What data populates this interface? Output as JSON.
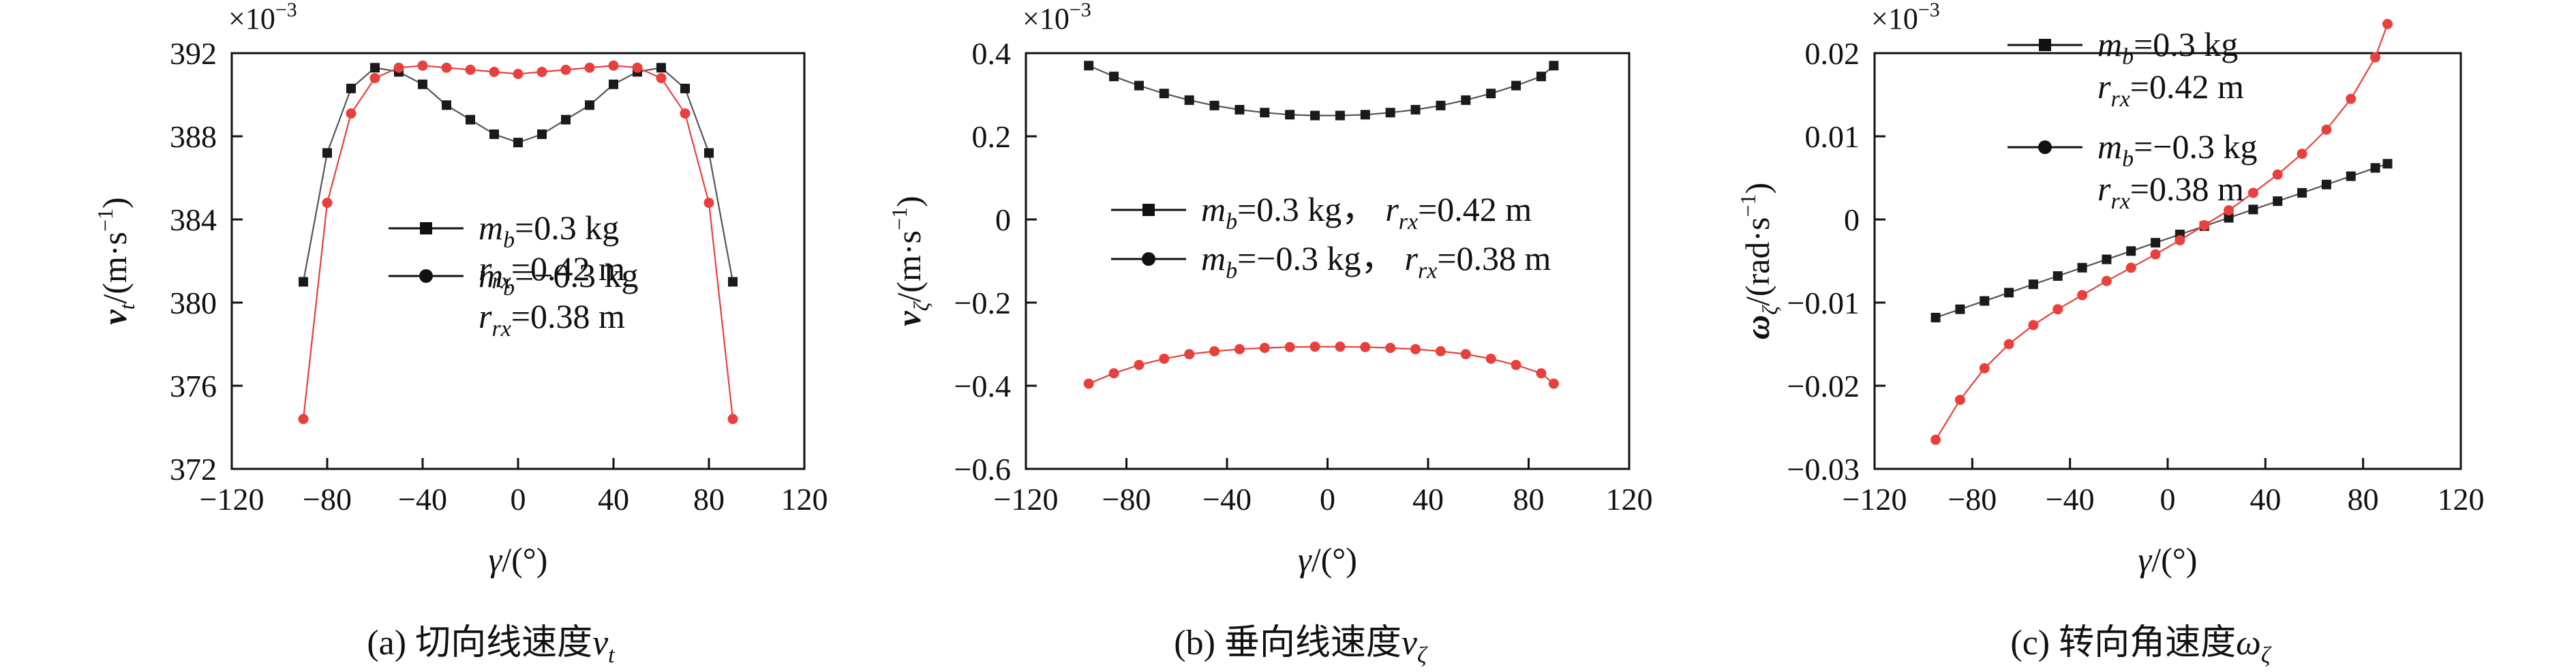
{
  "chart_data": [
    {
      "type": "line",
      "caption_prefix": "(a) 切向线速度",
      "caption_symbol": "v",
      "caption_sub": "t",
      "multiplier": "×10",
      "multiplier_exp": "−3",
      "xlabel_sym": "γ",
      "xlabel_unit": "/(°)",
      "ylabel_sym": "v",
      "ylabel_sub": "t",
      "ylabel_unit_a": "/(m·s",
      "ylabel_unit_exp": "−1",
      "ylabel_unit_b": ")",
      "xlim": [
        -120,
        120
      ],
      "ylim": [
        372,
        392
      ],
      "xticks": [
        -120,
        -80,
        -40,
        0,
        40,
        80,
        120
      ],
      "xtick_labels": [
        "−120",
        "−80",
        "−40",
        "0",
        "40",
        "80",
        "120"
      ],
      "yticks": [
        372,
        376,
        380,
        384,
        388,
        392
      ],
      "ytick_labels": [
        "372",
        "376",
        "380",
        "384",
        "388",
        "392"
      ],
      "series": [
        {
          "name": "mb=0.3 kg, rrx=0.42 m",
          "marker": "square",
          "color": "#1a1a1a",
          "x": [
            -90,
            -80,
            -70,
            -60,
            -50,
            -40,
            -30,
            -20,
            -10,
            0,
            10,
            20,
            30,
            40,
            50,
            60,
            70,
            80,
            90
          ],
          "y": [
            381.0,
            387.2,
            390.3,
            391.3,
            391.1,
            390.5,
            389.5,
            388.8,
            388.1,
            387.7,
            388.1,
            388.8,
            389.5,
            390.5,
            391.1,
            391.3,
            390.3,
            387.2,
            381.0
          ]
        },
        {
          "name": "mb=−0.3 kg, rrx=0.38 m",
          "marker": "circle",
          "color": "#e8403c",
          "x": [
            -90,
            -80,
            -70,
            -60,
            -50,
            -40,
            -30,
            -20,
            -10,
            0,
            10,
            20,
            30,
            40,
            50,
            60,
            70,
            80,
            90
          ],
          "y": [
            374.4,
            384.8,
            389.1,
            390.8,
            391.3,
            391.4,
            391.3,
            391.2,
            391.1,
            391.0,
            391.1,
            391.2,
            391.3,
            391.4,
            391.3,
            390.8,
            389.1,
            384.8,
            374.4
          ]
        }
      ],
      "legend": [
        {
          "line1_pre": "m",
          "line1_sub": "b",
          "line1_post": "=0.3 kg",
          "line2_pre": "r",
          "line2_sub": "rx",
          "line2_post": "=0.42 m"
        },
        {
          "line1_pre": "m",
          "line1_sub": "b",
          "line1_post": "=−0.3 kg",
          "line2_pre": "r",
          "line2_sub": "rx",
          "line2_post": "=0.38 m"
        }
      ]
    },
    {
      "type": "line",
      "caption_prefix": "(b) 垂向线速度",
      "caption_symbol": "v",
      "caption_sub": "ζ",
      "multiplier": "×10",
      "multiplier_exp": "−3",
      "xlabel_sym": "γ",
      "xlabel_unit": "/(°)",
      "ylabel_sym": "v",
      "ylabel_sub": "ζ",
      "ylabel_unit_a": "/(m·s",
      "ylabel_unit_exp": "−1",
      "ylabel_unit_b": ")",
      "xlim": [
        -120,
        120
      ],
      "ylim": [
        -0.6,
        0.4
      ],
      "xticks": [
        -120,
        -80,
        -40,
        0,
        40,
        80,
        120
      ],
      "xtick_labels": [
        "−120",
        "−80",
        "−40",
        "0",
        "40",
        "80",
        "120"
      ],
      "yticks": [
        -0.6,
        -0.4,
        -0.2,
        0,
        0.2,
        0.4
      ],
      "ytick_labels": [
        "−0.6",
        "−0.4",
        "−0.2",
        "0",
        "0.2",
        "0.4"
      ],
      "series": [
        {
          "name": "mb=0.3 kg, rrx=0.42 m",
          "marker": "square",
          "color": "#1a1a1a",
          "x": [
            -95,
            -85,
            -75,
            -65,
            -55,
            -45,
            -35,
            -25,
            -15,
            -5,
            5,
            15,
            25,
            35,
            45,
            55,
            65,
            75,
            85,
            90
          ],
          "y": [
            0.37,
            0.344,
            0.322,
            0.303,
            0.287,
            0.274,
            0.264,
            0.257,
            0.252,
            0.25,
            0.25,
            0.252,
            0.257,
            0.264,
            0.274,
            0.287,
            0.303,
            0.322,
            0.344,
            0.37
          ]
        },
        {
          "name": "mb=−0.3 kg, rrx=0.38 m",
          "marker": "circle",
          "color": "#e8403c",
          "x": [
            -95,
            -85,
            -75,
            -65,
            -55,
            -45,
            -35,
            -25,
            -15,
            -5,
            5,
            15,
            25,
            35,
            45,
            55,
            65,
            75,
            85,
            90
          ],
          "y": [
            -0.395,
            -0.37,
            -0.35,
            -0.335,
            -0.324,
            -0.317,
            -0.312,
            -0.309,
            -0.307,
            -0.306,
            -0.306,
            -0.307,
            -0.309,
            -0.312,
            -0.317,
            -0.324,
            -0.335,
            -0.35,
            -0.37,
            -0.395
          ]
        }
      ],
      "legend": [
        {
          "line1_pre": "m",
          "line1_sub": "b",
          "line1_post": "=0.3 kg，",
          "line2_pre": "r",
          "line2_sub": "rx",
          "line2_post": "=0.42 m"
        },
        {
          "line1_pre": "m",
          "line1_sub": "b",
          "line1_post": "=−0.3 kg，",
          "line2_pre": "r",
          "line2_sub": "rx",
          "line2_post": "=0.38 m"
        }
      ]
    },
    {
      "type": "line",
      "caption_prefix": "(c) 转向角速度",
      "caption_symbol": "ω",
      "caption_sub": "ζ",
      "multiplier": "×10",
      "multiplier_exp": "−3",
      "xlabel_sym": "γ",
      "xlabel_unit": "/(°)",
      "ylabel_sym": "ω",
      "ylabel_sub": "ζ",
      "ylabel_unit_a": "/(rad·s",
      "ylabel_unit_exp": "−1",
      "ylabel_unit_b": ")",
      "xlim": [
        -120,
        120
      ],
      "ylim": [
        -0.03,
        0.02
      ],
      "xticks": [
        -120,
        -80,
        -40,
        0,
        40,
        80,
        120
      ],
      "xtick_labels": [
        "−120",
        "−80",
        "−40",
        "0",
        "40",
        "80",
        "120"
      ],
      "yticks": [
        -0.03,
        -0.02,
        -0.01,
        0,
        0.01,
        0.02
      ],
      "ytick_labels": [
        "−0.03",
        "−0.02",
        "−0.01",
        "0",
        "0.01",
        "0.02"
      ],
      "series": [
        {
          "name": "mb=0.3 kg, rrx=0.42 m",
          "marker": "square",
          "color": "#1a1a1a",
          "x": [
            -95,
            -85,
            -75,
            -65,
            -55,
            -45,
            -35,
            -25,
            -15,
            -5,
            5,
            15,
            25,
            35,
            45,
            55,
            65,
            75,
            85,
            90
          ],
          "y": [
            -0.0118,
            -0.0108,
            -0.0098,
            -0.0088,
            -0.0078,
            -0.0068,
            -0.0058,
            -0.0048,
            -0.0038,
            -0.0028,
            -0.0018,
            -0.0008,
            0.0002,
            0.0012,
            0.0022,
            0.0032,
            0.0042,
            0.0052,
            0.0062,
            0.0067
          ]
        },
        {
          "name": "mb=−0.3 kg, rrx=0.38 m",
          "marker": "circle",
          "color": "#e8403c",
          "x": [
            -95,
            -85,
            -75,
            -65,
            -55,
            -45,
            -35,
            -25,
            -15,
            -5,
            5,
            15,
            25,
            35,
            45,
            55,
            65,
            75,
            85,
            90
          ],
          "y": [
            -0.0265,
            -0.0217,
            -0.0179,
            -0.015,
            -0.0127,
            -0.0108,
            -0.0091,
            -0.0074,
            -0.0058,
            -0.0042,
            -0.0025,
            -0.0007,
            0.0011,
            0.0032,
            0.0054,
            0.0079,
            0.0108,
            0.0145,
            0.0195,
            0.0235
          ]
        }
      ],
      "legend": [
        {
          "line1_pre": "m",
          "line1_sub": "b",
          "line1_post": "=0.3 kg",
          "line2_pre": "r",
          "line2_sub": "rx",
          "line2_post": "=0.42 m"
        },
        {
          "line1_pre": "m",
          "line1_sub": "b",
          "line1_post": "=−0.3 kg",
          "line2_pre": "r",
          "line2_sub": "rx",
          "line2_post": "=0.38 m"
        }
      ]
    }
  ]
}
